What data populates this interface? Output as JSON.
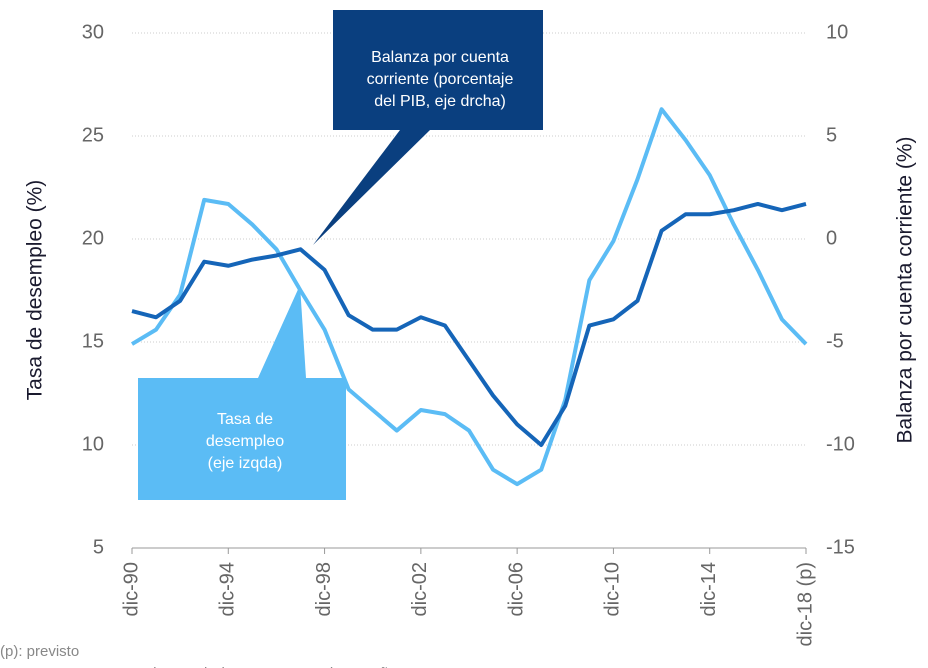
{
  "chart_data": {
    "type": "line",
    "ylabel": "Tasa de desempleo (%)",
    "y2label": "Balanza por cuenta corriente (%)",
    "categories": [
      "dic-90",
      null,
      null,
      null,
      "dic-94",
      null,
      null,
      null,
      "dic-98",
      null,
      null,
      null,
      "dic-02",
      null,
      null,
      null,
      "dic-06",
      null,
      null,
      null,
      "dic-10",
      null,
      null,
      null,
      "dic-14",
      null,
      null,
      null,
      "dic-18 (p)"
    ],
    "series": [
      {
        "name": "Tasa de desempleo (eje izqda)",
        "color": "#5bbcf5",
        "axis": "y",
        "values": [
          14.9,
          15.6,
          17.3,
          21.9,
          21.7,
          20.7,
          19.5,
          17.5,
          15.6,
          12.7,
          11.7,
          10.7,
          11.7,
          11.5,
          10.7,
          8.8,
          8.1,
          8.8,
          12.2,
          18.0,
          19.9,
          22.9,
          26.3,
          24.8,
          23.1,
          20.7,
          18.5,
          16.1,
          14.9
        ]
      },
      {
        "name": "Balanza por cuenta corriente (porcentaje del PIB, eje drcha)",
        "color": "#1565b8",
        "axis": "y2",
        "values": [
          -3.5,
          -3.8,
          -3.0,
          -1.1,
          -1.3,
          -1.0,
          -0.8,
          -0.5,
          -1.5,
          -3.7,
          -4.4,
          -4.4,
          -3.8,
          -4.2,
          -5.9,
          -7.6,
          -9.0,
          -10.0,
          -8.1,
          -4.2,
          -3.9,
          -3.0,
          0.4,
          1.2,
          1.2,
          1.4,
          1.7,
          1.4,
          1.7
        ]
      }
    ],
    "ylim": [
      5,
      30
    ],
    "yticks": [
      5,
      10,
      15,
      20,
      25,
      30
    ],
    "y2lim": [
      -15,
      10
    ],
    "y2ticks": [
      -15,
      -10,
      -5,
      0,
      5,
      10
    ],
    "grid": true,
    "annotations": [
      {
        "lines": [
          "Balanza por cuenta",
          "corriente (porcentaje",
          "del PIB, eje drcha)"
        ],
        "color": "#0a3f7f"
      },
      {
        "lines": [
          "Tasa de",
          "desempleo",
          "(eje izqda)"
        ],
        "color": "#5bbcf5"
      }
    ],
    "footnotes": [
      "(p): previsto",
      "Fuente: BBVA Research a partir de INE y Banco de España"
    ]
  }
}
